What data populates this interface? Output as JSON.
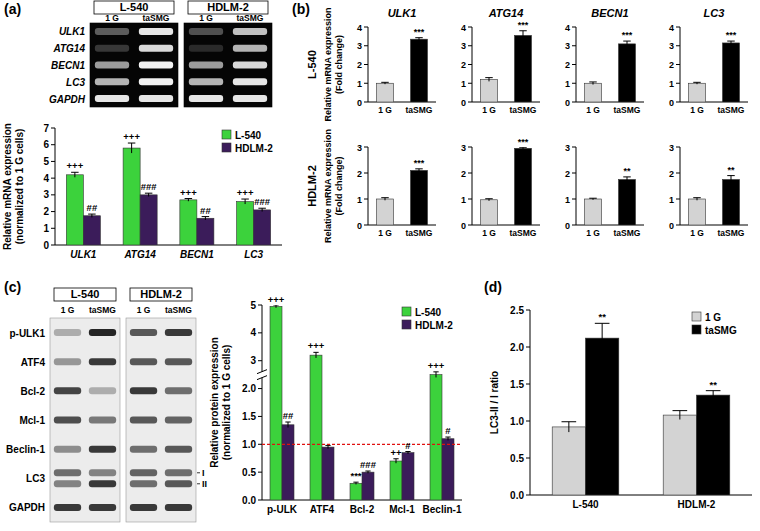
{
  "panel_labels": [
    "(a)",
    "(b)",
    "(c)",
    "(d)"
  ],
  "gels": [
    {
      "groups": [
        "L-540",
        "HDLM-2"
      ],
      "lanes": [
        "1 G",
        "taSMG",
        "1 G",
        "taSMG"
      ],
      "rows": [
        {
          "label": "ULK1",
          "bands": [
            0.35,
            0.9,
            0.3,
            0.75
          ]
        },
        {
          "label": "ATG14",
          "bands": [
            0.2,
            0.85,
            0.15,
            0.7
          ]
        },
        {
          "label": "BECN1",
          "bands": [
            0.6,
            0.95,
            0.6,
            0.85
          ]
        },
        {
          "label": "LC3",
          "bands": [
            0.7,
            0.95,
            0.7,
            0.9
          ]
        },
        {
          "label": "GAPDH",
          "bands": [
            0.9,
            0.9,
            0.9,
            0.9
          ]
        }
      ]
    },
    {
      "groups": [
        "L-540",
        "HDLM-2"
      ],
      "lanes": [
        "1 G",
        "taSMG",
        "1 G",
        "taSMG"
      ],
      "rows": [
        {
          "label": "p-ULK1",
          "bands": [
            0.3,
            0.95,
            0.7,
            0.85
          ]
        },
        {
          "label": "ATF4",
          "bands": [
            0.4,
            0.85,
            0.7,
            0.7
          ]
        },
        {
          "label": "Bcl-2",
          "bands": [
            0.8,
            0.3,
            0.85,
            0.6
          ]
        },
        {
          "label": "Mcl-1",
          "bands": [
            0.75,
            0.55,
            0.7,
            0.65
          ]
        },
        {
          "label": "Beclin-1",
          "bands": [
            0.45,
            0.85,
            0.6,
            0.7
          ]
        },
        {
          "label": "LC3",
          "sub_rows": [
            {
              "label": "I",
              "bands": [
                0.6,
                0.5,
                0.65,
                0.6
              ]
            },
            {
              "label": "II",
              "bands": [
                0.5,
                0.85,
                0.6,
                0.7
              ]
            }
          ]
        },
        {
          "label": "GAPDH",
          "bands": [
            0.85,
            0.85,
            0.85,
            0.85
          ]
        }
      ]
    }
  ],
  "chart_data": [
    {
      "type": "bar",
      "categories": [
        "ULK1",
        "ATG14",
        "BECN1",
        "LC3"
      ],
      "y_label": [
        "Relative mRNA expression",
        "(normalized to 1 G cells)"
      ],
      "ylim": [
        0,
        7
      ],
      "yticks": [
        0,
        1,
        2,
        3,
        4,
        5,
        6,
        7
      ],
      "legend": "upper right",
      "series": [
        {
          "name": "L-540",
          "color": "#3cd23c",
          "values": [
            4.2,
            5.8,
            2.7,
            2.6
          ],
          "errors": [
            0.15,
            0.3,
            0.08,
            0.15
          ],
          "annotations": [
            "+++",
            "+++",
            "+++",
            "+++"
          ]
        },
        {
          "name": "HDLM-2",
          "color": "#3b1c5a",
          "values": [
            1.75,
            3.0,
            1.6,
            2.1
          ],
          "errors": [
            0.1,
            0.1,
            0.1,
            0.1
          ],
          "annotations": [
            "##",
            "###",
            "##",
            "###"
          ]
        }
      ]
    },
    {
      "type": "bar",
      "title": "ULK1",
      "row_label": "L-540",
      "y_label": [
        "Relative mRNA expression",
        "(Fold change)"
      ],
      "categories": [
        "1 G",
        "taSMG"
      ],
      "values": [
        1.0,
        3.35
      ],
      "errors": [
        0.05,
        0.08
      ],
      "colors": [
        "#d3d3d3",
        "#000000"
      ],
      "annotations": [
        null,
        "***"
      ],
      "ylim": [
        0,
        4
      ],
      "yticks": [
        0,
        1,
        2,
        3,
        4
      ]
    },
    {
      "type": "bar",
      "title": "ATG14",
      "categories": [
        "1 G",
        "taSMG"
      ],
      "values": [
        1.2,
        3.55
      ],
      "errors": [
        0.1,
        0.25
      ],
      "colors": [
        "#d3d3d3",
        "#000000"
      ],
      "annotations": [
        null,
        "***"
      ],
      "ylim": [
        0,
        4
      ],
      "yticks": [
        0,
        1,
        2,
        3,
        4
      ]
    },
    {
      "type": "bar",
      "title": "BECN1",
      "categories": [
        "1 G",
        "taSMG"
      ],
      "values": [
        1.0,
        3.1
      ],
      "errors": [
        0.07,
        0.15
      ],
      "colors": [
        "#d3d3d3",
        "#000000"
      ],
      "annotations": [
        null,
        "***"
      ],
      "ylim": [
        0,
        4
      ],
      "yticks": [
        0,
        1,
        2,
        3,
        4
      ]
    },
    {
      "type": "bar",
      "title": "LC3",
      "categories": [
        "1 G",
        "taSMG"
      ],
      "values": [
        1.0,
        3.15
      ],
      "errors": [
        0.05,
        0.1
      ],
      "colors": [
        "#d3d3d3",
        "#000000"
      ],
      "annotations": [
        null,
        "***"
      ],
      "ylim": [
        0,
        4
      ],
      "yticks": [
        0,
        1,
        2,
        3,
        4
      ]
    },
    {
      "type": "bar",
      "row_label": "HDLM-2",
      "y_label": [
        "Relative mRNA expression",
        "(Fold change)"
      ],
      "categories": [
        "1 G",
        "taSMG"
      ],
      "values": [
        1.0,
        2.1
      ],
      "errors": [
        0.05,
        0.06
      ],
      "colors": [
        "#d3d3d3",
        "#000000"
      ],
      "annotations": [
        null,
        "***"
      ],
      "ylim": [
        0,
        3
      ],
      "yticks": [
        0,
        1,
        2,
        3
      ]
    },
    {
      "type": "bar",
      "categories": [
        "1 G",
        "taSMG"
      ],
      "values": [
        0.97,
        2.95
      ],
      "errors": [
        0.04,
        0.04
      ],
      "colors": [
        "#d3d3d3",
        "#000000"
      ],
      "annotations": [
        null,
        "***"
      ],
      "ylim": [
        0,
        3
      ],
      "yticks": [
        0,
        1,
        2,
        3
      ]
    },
    {
      "type": "bar",
      "categories": [
        "1 G",
        "taSMG"
      ],
      "values": [
        1.0,
        1.75
      ],
      "errors": [
        0.03,
        0.1
      ],
      "colors": [
        "#d3d3d3",
        "#000000"
      ],
      "annotations": [
        null,
        "**"
      ],
      "ylim": [
        0,
        3
      ],
      "yticks": [
        0,
        1,
        2,
        3
      ]
    },
    {
      "type": "bar",
      "categories": [
        "1 G",
        "taSMG"
      ],
      "values": [
        1.0,
        1.75
      ],
      "errors": [
        0.05,
        0.15
      ],
      "colors": [
        "#d3d3d3",
        "#000000"
      ],
      "annotations": [
        null,
        "**"
      ],
      "ylim": [
        0,
        3
      ],
      "yticks": [
        0,
        1,
        2,
        3
      ]
    },
    {
      "type": "bar",
      "categories": [
        "p-ULK",
        "ATF4",
        "Bcl-2",
        "Mcl-1",
        "Beclin-1"
      ],
      "y_label": [
        "Relative protein expression",
        "(normalized to 1 G cells)"
      ],
      "ylim": [
        0,
        5
      ],
      "yticks": [
        {
          "value": 0,
          "label": "0.0"
        },
        {
          "value": 0.5,
          "label": "0.5"
        },
        {
          "value": 1,
          "label": "1.0"
        },
        {
          "value": 1.5,
          "label": "1.5"
        },
        {
          "value": 2,
          "label": "2.0"
        },
        3,
        4,
        5
      ],
      "reference_line": 1,
      "legend": "upper right",
      "series": [
        {
          "name": "L-540",
          "color": "#3cd23c",
          "values": [
            4.95,
            3.2,
            0.3,
            0.7,
            2.5
          ],
          "errors": [
            0.05,
            0.1,
            0.02,
            0.04,
            0.1
          ],
          "annotations": [
            "+++",
            "+++",
            "***",
            "++",
            "+++"
          ]
        },
        {
          "name": "HDLM-2",
          "color": "#3b1c5a",
          "values": [
            1.35,
            0.95,
            0.5,
            0.85,
            1.1
          ],
          "errors": [
            0.05,
            0.03,
            0.02,
            0.02,
            0.03
          ],
          "annotations": [
            "##",
            null,
            "###",
            "#",
            "#"
          ]
        }
      ]
    },
    {
      "type": "bar",
      "categories": [
        "L-540",
        "HDLM-2"
      ],
      "y_label": [
        "LC3-II / I ratio"
      ],
      "ylim": [
        0,
        2.5
      ],
      "yticks": [
        {
          "value": 0,
          "label": "0.0"
        },
        {
          "value": 0.5,
          "label": "0.5"
        },
        {
          "value": 1,
          "label": "1.0"
        },
        {
          "value": 1.5,
          "label": "1.5"
        },
        {
          "value": 2,
          "label": "2.0"
        },
        {
          "value": 2.5,
          "label": "2.5"
        }
      ],
      "legend": "upper right",
      "series": [
        {
          "name": "1 G",
          "color": "#d3d3d3",
          "values": [
            0.92,
            1.08
          ],
          "errors": [
            0.07,
            0.06
          ],
          "annotations": [
            null,
            null
          ]
        },
        {
          "name": "taSMG",
          "color": "#000000",
          "values": [
            2.12,
            1.35
          ],
          "errors": [
            0.2,
            0.06
          ],
          "annotations": [
            "**",
            "**"
          ]
        }
      ]
    }
  ]
}
